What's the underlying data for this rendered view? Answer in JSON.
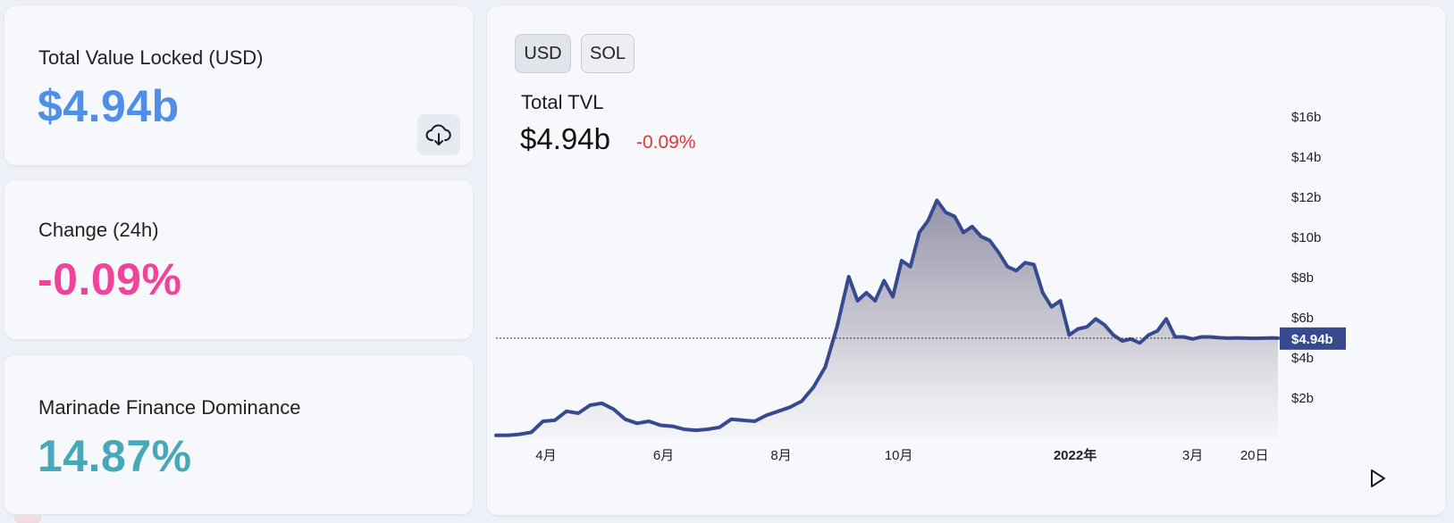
{
  "stats": {
    "tvl": {
      "label": "Total Value Locked (USD)",
      "value": "$4.94b"
    },
    "change": {
      "label": "Change (24h)",
      "value": "-0.09%"
    },
    "dominance": {
      "label": "Marinade Finance Dominance",
      "value": "14.87%"
    }
  },
  "chart_panel": {
    "toggles": [
      "USD",
      "SOL"
    ],
    "title": "Total TVL",
    "value": "$4.94b",
    "change": "-0.09%"
  },
  "chart_data": {
    "type": "area",
    "title": "Total TVL",
    "xlabel": "",
    "ylabel": "",
    "ylim": [
      0,
      17
    ],
    "y_unit": "billions USD",
    "yticks": [
      {
        "v": 2,
        "label": "$2b"
      },
      {
        "v": 4,
        "label": "$4b"
      },
      {
        "v": 6,
        "label": "$6b"
      },
      {
        "v": 8,
        "label": "$8b"
      },
      {
        "v": 10,
        "label": "$10b"
      },
      {
        "v": 12,
        "label": "$12b"
      },
      {
        "v": 14,
        "label": "$14b"
      },
      {
        "v": 16,
        "label": "$16b"
      }
    ],
    "xlim": [
      0,
      13.3
    ],
    "x_unit": "months since 2021-03",
    "xticks": [
      {
        "v": 0.85,
        "label": "4月",
        "bold": false
      },
      {
        "v": 2.85,
        "label": "6月",
        "bold": false
      },
      {
        "v": 4.85,
        "label": "8月",
        "bold": false
      },
      {
        "v": 6.85,
        "label": "10月",
        "bold": false
      },
      {
        "v": 9.85,
        "label": "2022年",
        "bold": true
      },
      {
        "v": 11.85,
        "label": "3月",
        "bold": false
      },
      {
        "v": 12.9,
        "label": "20日",
        "bold": false
      }
    ],
    "current": {
      "value": 4.94,
      "label": "$4.94b"
    },
    "series": [
      {
        "name": "TVL",
        "x": [
          0.0,
          0.2,
          0.4,
          0.6,
          0.8,
          1.0,
          1.2,
          1.4,
          1.6,
          1.8,
          2.0,
          2.2,
          2.4,
          2.6,
          2.8,
          3.0,
          3.2,
          3.4,
          3.6,
          3.8,
          4.0,
          4.2,
          4.4,
          4.6,
          4.8,
          5.0,
          5.2,
          5.4,
          5.6,
          5.8,
          6.0,
          6.15,
          6.3,
          6.45,
          6.6,
          6.75,
          6.9,
          7.05,
          7.2,
          7.35,
          7.5,
          7.65,
          7.8,
          7.95,
          8.1,
          8.25,
          8.4,
          8.55,
          8.7,
          8.85,
          9.0,
          9.15,
          9.3,
          9.45,
          9.6,
          9.75,
          9.9,
          10.05,
          10.2,
          10.35,
          10.5,
          10.65,
          10.8,
          10.95,
          11.1,
          11.25,
          11.4,
          11.55,
          11.7,
          11.85,
          12.0,
          12.15,
          12.3,
          12.45,
          12.6,
          12.75,
          12.9,
          13.05,
          13.2,
          13.3
        ],
        "values": [
          0.1,
          0.1,
          0.15,
          0.25,
          0.8,
          0.85,
          1.3,
          1.2,
          1.6,
          1.7,
          1.4,
          0.9,
          0.7,
          0.8,
          0.6,
          0.55,
          0.4,
          0.35,
          0.4,
          0.5,
          0.9,
          0.85,
          0.8,
          1.1,
          1.3,
          1.5,
          1.8,
          2.5,
          3.5,
          5.5,
          8.0,
          6.8,
          7.2,
          6.8,
          7.8,
          7.0,
          8.8,
          8.5,
          10.2,
          10.8,
          11.8,
          11.2,
          11.0,
          10.2,
          10.5,
          10.0,
          9.8,
          9.2,
          8.5,
          8.3,
          8.7,
          8.6,
          7.2,
          6.5,
          6.8,
          5.1,
          5.4,
          5.5,
          5.9,
          5.6,
          5.1,
          4.8,
          4.9,
          4.7,
          5.1,
          5.3,
          5.9,
          5.0,
          5.0,
          4.9,
          5.0,
          5.0,
          4.96,
          4.94,
          4.95,
          4.94,
          4.93,
          4.94,
          4.95,
          4.94
        ]
      }
    ]
  },
  "colors": {
    "line": "#384a8f",
    "tvl_value": "#4f8fe8",
    "change_value": "#f0449a",
    "dominance_value": "#46a8b8",
    "negative": "#e03838",
    "badge": "#384a8f"
  },
  "icons": {
    "download": "cloud-download-icon",
    "play": "play-icon"
  }
}
